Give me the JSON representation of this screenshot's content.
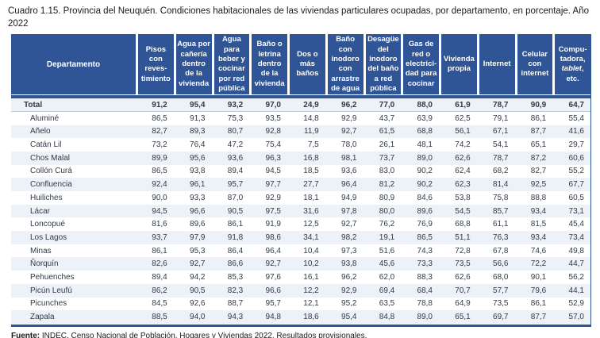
{
  "title": "Cuadro 1.15. Provincia del Neuquén. Condiciones habitacionales de las viviendas particulares ocupadas, por departamento, en porcentaje. Año 2022",
  "colors": {
    "header_bg": "#2F5597",
    "stripe_bg": "#EDF1F8",
    "rule": "#2F5597"
  },
  "table": {
    "dept_header": "Departamento",
    "columns": [
      {
        "parts": [
          {
            "t": "Pisos con reves-timiento"
          }
        ]
      },
      {
        "parts": [
          {
            "t": "Agua por cañería dentro de la vivienda"
          }
        ]
      },
      {
        "parts": [
          {
            "t": "Agua para beber y cocinar por red pública"
          }
        ]
      },
      {
        "parts": [
          {
            "t": "Baño o letrina dentro de la vivienda"
          }
        ]
      },
      {
        "parts": [
          {
            "t": "Dos o más baños"
          }
        ]
      },
      {
        "parts": [
          {
            "t": "Baño con inodoro con arrastre de agua"
          }
        ]
      },
      {
        "parts": [
          {
            "t": "Desagüe del inodoro del baño a red pública"
          }
        ]
      },
      {
        "parts": [
          {
            "t": "Gas de red o electrici-dad para cocinar"
          }
        ]
      },
      {
        "parts": [
          {
            "t": "Vivienda propia"
          }
        ]
      },
      {
        "parts": [
          {
            "t": "Internet"
          }
        ]
      },
      {
        "parts": [
          {
            "t": "Celular con internet"
          }
        ]
      },
      {
        "parts": [
          {
            "t": "Compu-tadora, "
          },
          {
            "t": "tablet",
            "italic": true
          },
          {
            "t": ", etc."
          }
        ]
      }
    ],
    "rows": [
      {
        "label": "Total",
        "total": true,
        "values": [
          "91,2",
          "95,4",
          "93,2",
          "97,0",
          "24,9",
          "96,2",
          "77,0",
          "88,0",
          "61,9",
          "78,7",
          "90,9",
          "64,7"
        ]
      },
      {
        "label": "Aluminé",
        "values": [
          "86,5",
          "91,3",
          "75,3",
          "93,5",
          "14,8",
          "92,9",
          "43,7",
          "63,9",
          "62,5",
          "79,1",
          "86,1",
          "55,4"
        ]
      },
      {
        "label": "Añelo",
        "values": [
          "82,7",
          "89,3",
          "80,7",
          "92,8",
          "11,9",
          "92,7",
          "61,5",
          "68,8",
          "56,1",
          "67,1",
          "87,7",
          "41,6"
        ]
      },
      {
        "label": "Catán Lil",
        "values": [
          "73,2",
          "76,4",
          "47,2",
          "75,4",
          "7,5",
          "78,0",
          "26,1",
          "48,1",
          "74,2",
          "54,1",
          "65,1",
          "29,7"
        ]
      },
      {
        "label": "Chos Malal",
        "values": [
          "89,9",
          "95,6",
          "93,6",
          "96,3",
          "16,8",
          "98,1",
          "73,7",
          "89,0",
          "62,6",
          "78,7",
          "87,2",
          "60,6"
        ]
      },
      {
        "label": "Collón Curá",
        "values": [
          "86,5",
          "93,8",
          "89,4",
          "94,5",
          "18,5",
          "93,6",
          "83,0",
          "90,2",
          "62,4",
          "68,2",
          "82,7",
          "55,2"
        ]
      },
      {
        "label": "Confluencia",
        "values": [
          "92,4",
          "96,1",
          "95,7",
          "97,7",
          "27,7",
          "96,4",
          "81,2",
          "90,2",
          "62,3",
          "81,4",
          "92,5",
          "67,7"
        ]
      },
      {
        "label": "Huiliches",
        "values": [
          "90,0",
          "93,3",
          "87,0",
          "92,9",
          "18,1",
          "94,9",
          "80,9",
          "84,6",
          "53,8",
          "75,8",
          "88,8",
          "60,5"
        ]
      },
      {
        "label": "Lácar",
        "values": [
          "94,5",
          "96,6",
          "90,5",
          "97,5",
          "31,6",
          "97,8",
          "80,0",
          "89,6",
          "54,5",
          "85,7",
          "93,4",
          "73,1"
        ]
      },
      {
        "label": "Loncopué",
        "values": [
          "81,6",
          "89,6",
          "86,1",
          "91,9",
          "12,5",
          "92,7",
          "76,2",
          "76,9",
          "68,8",
          "61,1",
          "81,5",
          "45,4"
        ]
      },
      {
        "label": "Los Lagos",
        "values": [
          "93,7",
          "97,9",
          "91,8",
          "98,6",
          "34,1",
          "98,2",
          "19,1",
          "86,5",
          "51,1",
          "76,3",
          "93,4",
          "73,4"
        ]
      },
      {
        "label": "Minas",
        "values": [
          "86,1",
          "95,3",
          "86,4",
          "96,4",
          "10,4",
          "97,3",
          "51,6",
          "74,3",
          "72,8",
          "67,8",
          "74,6",
          "49,8"
        ]
      },
      {
        "label": "Ñorquín",
        "values": [
          "82,6",
          "92,7",
          "86,6",
          "92,7",
          "10,2",
          "93,8",
          "45,6",
          "73,3",
          "73,5",
          "56,6",
          "72,2",
          "44,7"
        ]
      },
      {
        "label": "Pehuenches",
        "values": [
          "89,4",
          "94,2",
          "85,3",
          "97,6",
          "16,1",
          "96,2",
          "62,0",
          "88,3",
          "62,6",
          "68,0",
          "90,1",
          "56,2"
        ]
      },
      {
        "label": "Picún Leufú",
        "values": [
          "86,2",
          "90,5",
          "82,3",
          "96,6",
          "12,2",
          "92,9",
          "69,4",
          "68,4",
          "70,7",
          "57,7",
          "79,6",
          "44,1"
        ]
      },
      {
        "label": "Picunches",
        "values": [
          "84,5",
          "92,6",
          "88,7",
          "95,7",
          "12,1",
          "95,2",
          "63,5",
          "78,8",
          "64,9",
          "73,5",
          "86,1",
          "52,9"
        ]
      },
      {
        "label": "Zapala",
        "values": [
          "88,5",
          "94,0",
          "94,3",
          "94,8",
          "18,6",
          "95,4",
          "84,8",
          "89,0",
          "65,1",
          "69,7",
          "87,7",
          "57,0"
        ]
      }
    ]
  },
  "source": {
    "label": "Fuente:",
    "text": " INDEC, Censo Nacional de Población, Hogares y Viviendas 2022. Resultados provisionales."
  }
}
